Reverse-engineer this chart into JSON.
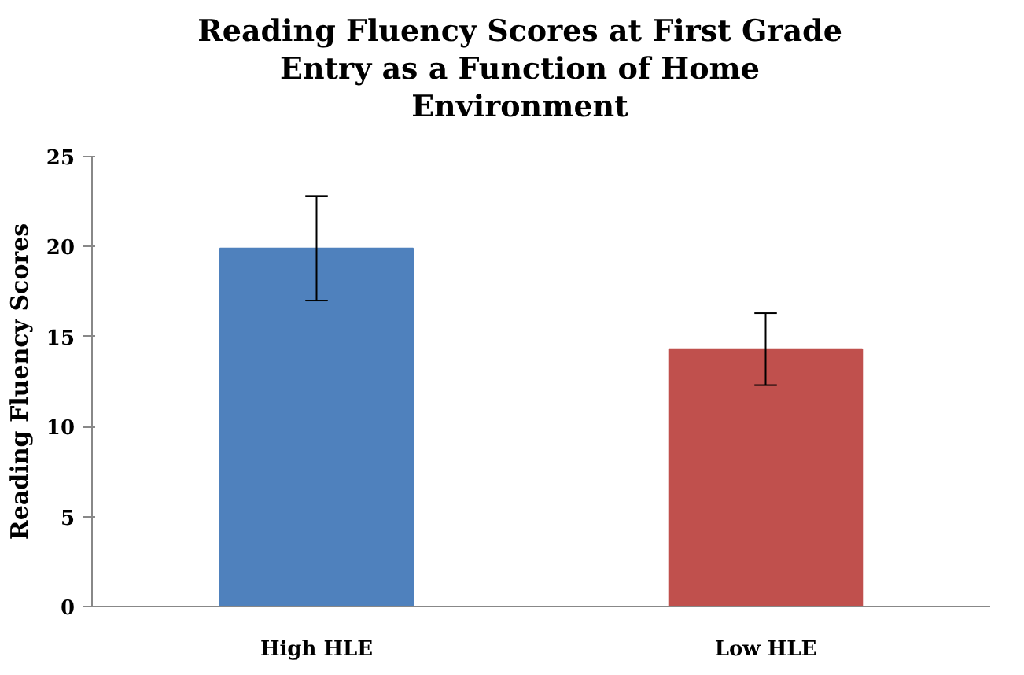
{
  "chart_data": {
    "type": "bar",
    "title": "Reading Fluency Scores at First Grade\nEntry as a Function of Home\nEnvironment",
    "ylabel": "Reading Fluency Scores",
    "categories": [
      "High HLE",
      "Low HLE"
    ],
    "values": [
      19.9,
      14.3
    ],
    "colors": [
      "#4f81bd",
      "#c0504d"
    ],
    "errors": [
      [
        17.0,
        22.8
      ],
      [
        12.3,
        16.3
      ]
    ],
    "ylim": [
      0,
      25
    ],
    "yticks": [
      0,
      5,
      10,
      15,
      20,
      25
    ],
    "grid": false
  }
}
